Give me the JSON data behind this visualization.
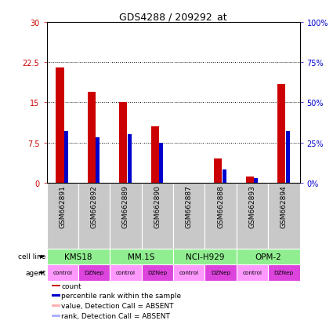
{
  "title": "GDS4288 / 209292_at",
  "samples": [
    "GSM662891",
    "GSM662892",
    "GSM662889",
    "GSM662890",
    "GSM662887",
    "GSM662888",
    "GSM662893",
    "GSM662894"
  ],
  "count_values": [
    21.5,
    17.0,
    15.0,
    10.5,
    0.0,
    4.5,
    1.2,
    18.5
  ],
  "rank_values": [
    32.0,
    28.0,
    30.0,
    25.0,
    0.0,
    8.0,
    3.0,
    32.0
  ],
  "count_absent": [
    false,
    false,
    false,
    false,
    true,
    false,
    false,
    false
  ],
  "rank_absent": [
    false,
    false,
    false,
    false,
    true,
    false,
    false,
    false
  ],
  "ylim_left": [
    0,
    30
  ],
  "ylim_right": [
    0,
    100
  ],
  "yticks_left": [
    0,
    7.5,
    15,
    22.5,
    30
  ],
  "yticks_right": [
    0,
    25,
    50,
    75,
    100
  ],
  "ytick_labels_left": [
    "0",
    "7.5",
    "15",
    "22.5",
    "30"
  ],
  "ytick_labels_right": [
    "0%",
    "25%",
    "50%",
    "75%",
    "100%"
  ],
  "cell_line_groups": [
    {
      "label": "KMS18",
      "start": 0,
      "end": 2
    },
    {
      "label": "MM.1S",
      "start": 2,
      "end": 4
    },
    {
      "label": "NCI-H929",
      "start": 4,
      "end": 6
    },
    {
      "label": "OPM-2",
      "start": 6,
      "end": 8
    }
  ],
  "agents": [
    "control",
    "DZNep",
    "control",
    "DZNep",
    "control",
    "DZNep",
    "control",
    "DZNep"
  ],
  "cell_line_color": "#90ee90",
  "sample_bg_color": "#c8c8c8",
  "color_count": "#cc0000",
  "color_rank": "#0000cc",
  "color_count_absent": "#ffb0b0",
  "color_rank_absent": "#b0b0ff",
  "left_label_color": "#cc0000",
  "right_label_color": "#0000cc",
  "control_color": "#ff99ff",
  "dznep_color": "#dd44dd",
  "legend_items": [
    [
      "#cc0000",
      "count"
    ],
    [
      "#0000cc",
      "percentile rank within the sample"
    ],
    [
      "#ffb0b0",
      "value, Detection Call = ABSENT"
    ],
    [
      "#b0b0ff",
      "rank, Detection Call = ABSENT"
    ]
  ]
}
